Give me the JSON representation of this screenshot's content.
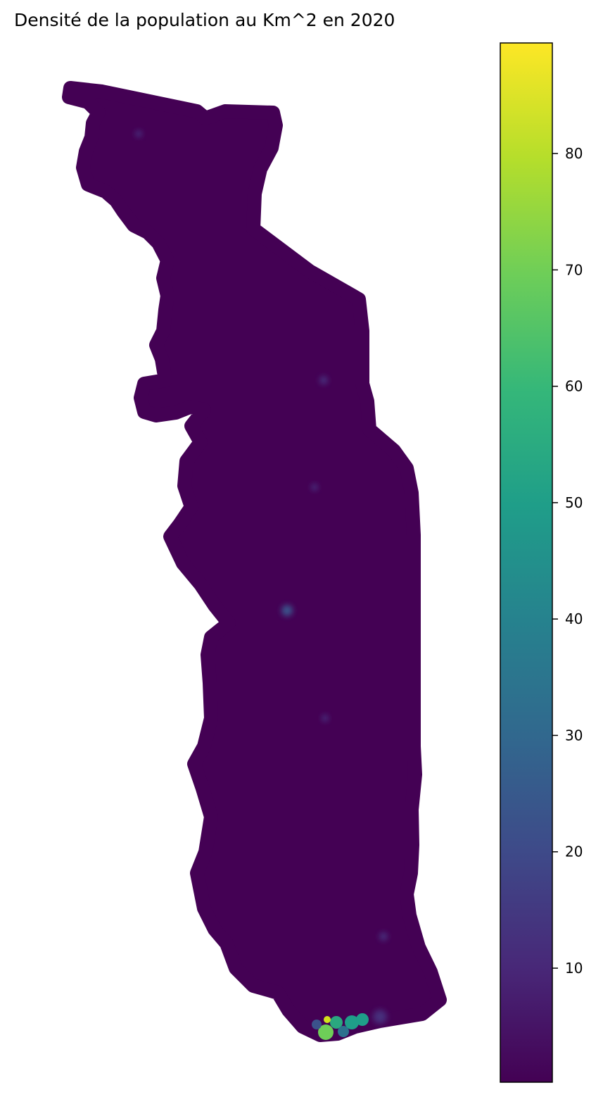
{
  "title": "Densité de la population au Km^2 en 2020",
  "chart_data": {
    "type": "heatmap",
    "title": "Densité de la population au Km^2 en 2020",
    "colormap": "viridis",
    "colormap_stops": [
      "#440154",
      "#482878",
      "#3e4a89",
      "#31688e",
      "#26828e",
      "#1f9e89",
      "#35b779",
      "#6ece58",
      "#b5de2b",
      "#fde725"
    ],
    "value_range": [
      0.2,
      89.5
    ],
    "colorbar_ticks": [
      10,
      20,
      30,
      40,
      50,
      60,
      70,
      80
    ],
    "colorbar_tick_labels": [
      "10",
      "20",
      "30",
      "40",
      "50",
      "60",
      "70",
      "80"
    ],
    "base_color": "#440154",
    "hotspots": [
      {
        "value": 70,
        "color": "#6ece58"
      },
      {
        "value": 55,
        "color": "#2aa87f"
      },
      {
        "value": 48,
        "color": "#1f9e89"
      },
      {
        "value": 85,
        "color": "#d2e21b"
      },
      {
        "value": 35,
        "color": "#2d718e"
      },
      {
        "value": 22,
        "color": "#3b528b"
      },
      {
        "value": 12,
        "color": "#472d7b"
      }
    ]
  }
}
